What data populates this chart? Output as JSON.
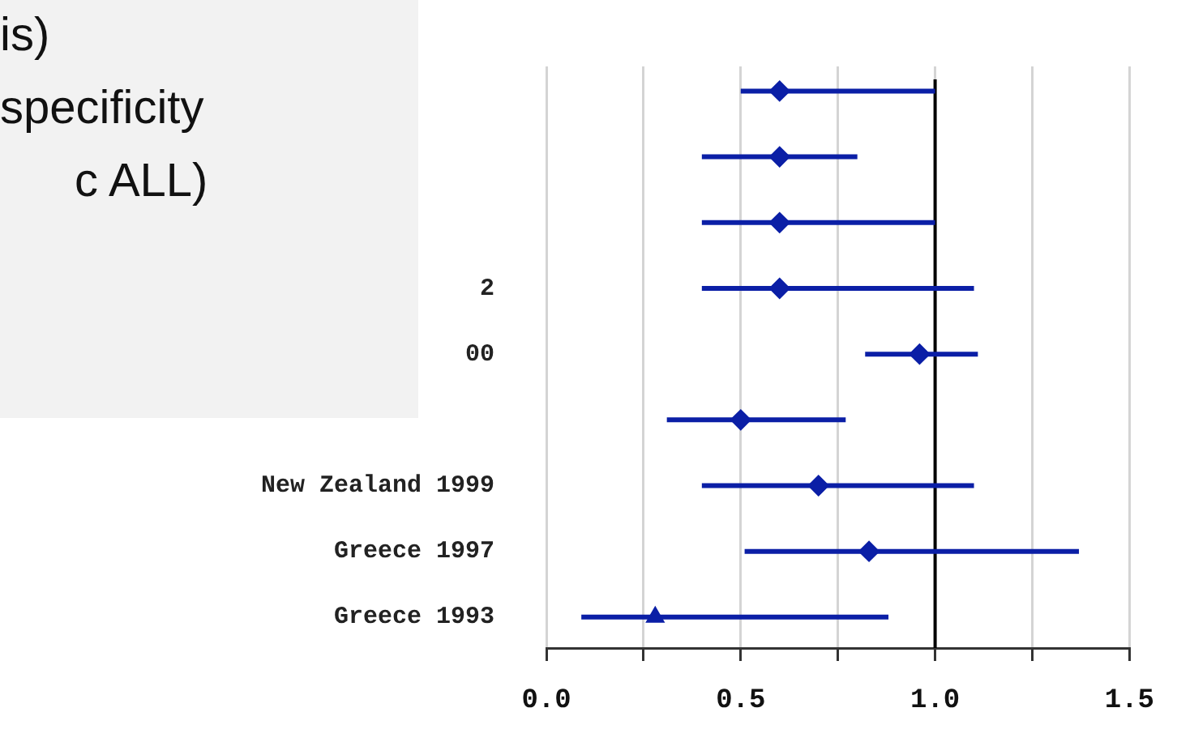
{
  "chart_data": {
    "type": "scatter",
    "orientation": "horizontal",
    "categories": [
      null,
      null,
      null,
      "2",
      "00",
      null,
      "New Zealand 1999",
      "Greece 1997",
      "Greece 1993"
    ],
    "series": [
      {
        "color": "#0b1fa6",
        "marker": "diamond",
        "values": [
          0.6,
          0.6,
          0.6,
          0.6,
          0.96,
          0.5,
          0.7,
          0.83,
          null
        ],
        "errors": [
          [
            0.5,
            1.0
          ],
          [
            0.4,
            0.8
          ],
          [
            0.4,
            1.0
          ],
          [
            0.4,
            1.1
          ],
          [
            0.82,
            1.11
          ],
          [
            0.31,
            0.77
          ],
          [
            0.4,
            1.1
          ],
          [
            0.51,
            1.37
          ],
          null
        ]
      },
      {
        "color": "#0b1fa6",
        "marker": "triangle",
        "values": [
          null,
          null,
          null,
          null,
          null,
          null,
          null,
          null,
          0.28
        ],
        "errors": [
          null,
          null,
          null,
          null,
          null,
          null,
          null,
          null,
          [
            0.09,
            0.88
          ]
        ]
      }
    ],
    "xlim": [
      0,
      1.5
    ],
    "xticks": [
      {
        "value": 0,
        "label": "0.0"
      },
      {
        "value": 0.25,
        "label": null
      },
      {
        "value": 0.5,
        "label": "0.5"
      },
      {
        "value": 0.75,
        "label": null
      },
      {
        "value": 1,
        "label": "1.0"
      },
      {
        "value": 1.25,
        "label": null
      },
      {
        "value": 1.5,
        "label": "1.5"
      }
    ],
    "grid": "x",
    "ref_lines": [
      {
        "axis": "x",
        "value": 1,
        "color": "#000000"
      }
    ],
    "annotations": [
      "is)",
      "specificity",
      "c ALL)"
    ]
  }
}
